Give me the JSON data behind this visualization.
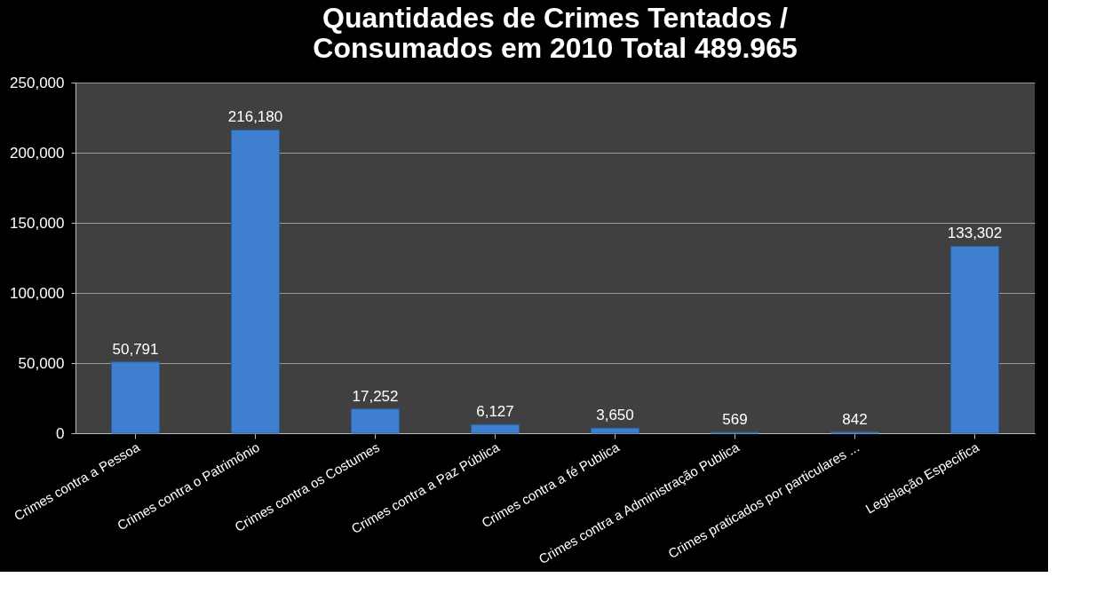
{
  "chart_data": {
    "type": "bar",
    "title": "Quantidades de Crimes Tentados /\nConsumados  em 2010  Total 489.965",
    "categories": [
      "Crimes contra a Pessoa",
      "Crimes contra o Patrimônio",
      "Crimes contra os Costumes",
      "Crimes contra a Paz Pública",
      "Crimes contra a fé Publica",
      "Crimes contra a Administração Publica",
      "Crimes praticados por particulares ...",
      "Legislação Especifica"
    ],
    "values": [
      50791,
      216180,
      17252,
      6127,
      3650,
      569,
      842,
      133302
    ],
    "value_labels": [
      "50,791",
      "216,180",
      "17,252",
      "6,127",
      "3,650",
      "569",
      "842",
      "133,302"
    ],
    "color": "#3f7fd0",
    "ylim": [
      0,
      250000
    ],
    "yticks": [
      0,
      {
        "value": 50000,
        "label": "50,000"
      },
      {
        "value": 100000,
        "label": "100,000"
      },
      {
        "value": 150000,
        "label": "150,000"
      },
      {
        "value": 200000,
        "label": "200,000"
      },
      {
        "value": 250000,
        "label": "250,000"
      }
    ],
    "grid": "y"
  }
}
